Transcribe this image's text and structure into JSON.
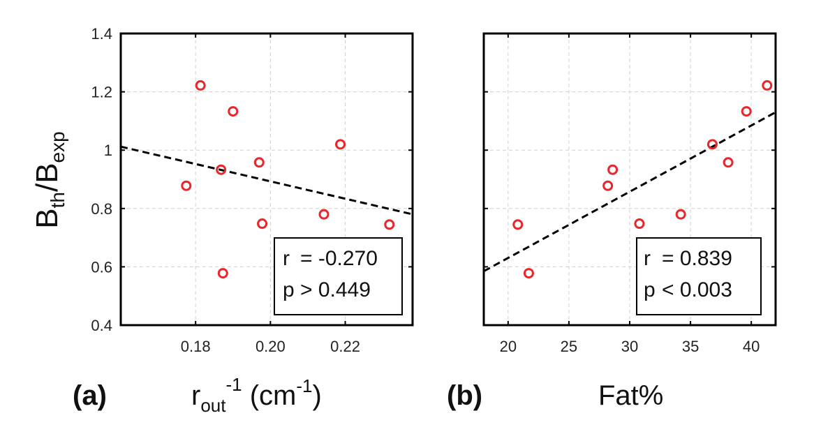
{
  "y_label": {
    "main": "B",
    "sub1": "th",
    "slash": "/B",
    "sub2": "exp"
  },
  "chart_data": [
    {
      "type": "scatter",
      "panel_label": "(a)",
      "xlabel": {
        "main": "r",
        "sub": "out",
        "sup": "-1",
        "unit_pre": " (cm",
        "unit_sup": "-1",
        "unit_post": ")"
      },
      "xlim": [
        0.16,
        0.238
      ],
      "ylim": [
        0.4,
        1.4
      ],
      "xticks": [
        0.18,
        0.2,
        0.22
      ],
      "xtick_labels": [
        "0.18",
        "0.20",
        "0.22"
      ],
      "yticks": [
        0.4,
        0.6,
        0.8,
        1.0,
        1.2,
        1.4
      ],
      "ytick_labels": [
        "0.4",
        "0.6",
        "0.8",
        "1",
        "1.2",
        "1.4"
      ],
      "show_ytick_labels": true,
      "grid": true,
      "marker_color": "#e8262b",
      "points": [
        {
          "x": 0.1775,
          "y": 0.878
        },
        {
          "x": 0.1813,
          "y": 1.222
        },
        {
          "x": 0.1868,
          "y": 0.933
        },
        {
          "x": 0.1873,
          "y": 0.578
        },
        {
          "x": 0.19,
          "y": 1.133
        },
        {
          "x": 0.197,
          "y": 0.958
        },
        {
          "x": 0.1978,
          "y": 0.748
        },
        {
          "x": 0.2143,
          "y": 0.78
        },
        {
          "x": 0.2187,
          "y": 1.02
        },
        {
          "x": 0.2318,
          "y": 0.745
        }
      ],
      "fit_line": {
        "x": [
          0.16,
          0.238
        ],
        "y": [
          1.012,
          0.78
        ]
      },
      "stats": {
        "r_label": "r",
        "r_value": "= -0.270",
        "p_label": "p",
        "p_value": "> 0.449"
      }
    },
    {
      "type": "scatter",
      "panel_label": "(b)",
      "xlabel": {
        "main": "Fat%"
      },
      "xlim": [
        18,
        42
      ],
      "ylim": [
        0.4,
        1.4
      ],
      "xticks": [
        20,
        25,
        30,
        35,
        40
      ],
      "xtick_labels": [
        "20",
        "25",
        "30",
        "35",
        "40"
      ],
      "yticks": [
        0.4,
        0.6,
        0.8,
        1.0,
        1.2,
        1.4
      ],
      "show_ytick_labels": false,
      "grid": true,
      "marker_color": "#e8262b",
      "points": [
        {
          "x": 20.8,
          "y": 0.745
        },
        {
          "x": 21.7,
          "y": 0.578
        },
        {
          "x": 28.2,
          "y": 0.878
        },
        {
          "x": 28.6,
          "y": 0.933
        },
        {
          "x": 30.8,
          "y": 0.748
        },
        {
          "x": 34.2,
          "y": 0.78
        },
        {
          "x": 36.8,
          "y": 1.02
        },
        {
          "x": 38.1,
          "y": 0.958
        },
        {
          "x": 39.6,
          "y": 1.133
        },
        {
          "x": 41.3,
          "y": 1.222
        }
      ],
      "fit_line": {
        "x": [
          18,
          42
        ],
        "y": [
          0.585,
          1.13
        ]
      },
      "stats": {
        "r_label": "r",
        "r_value": "= 0.839",
        "p_label": "p",
        "p_value": "< 0.003"
      }
    }
  ]
}
